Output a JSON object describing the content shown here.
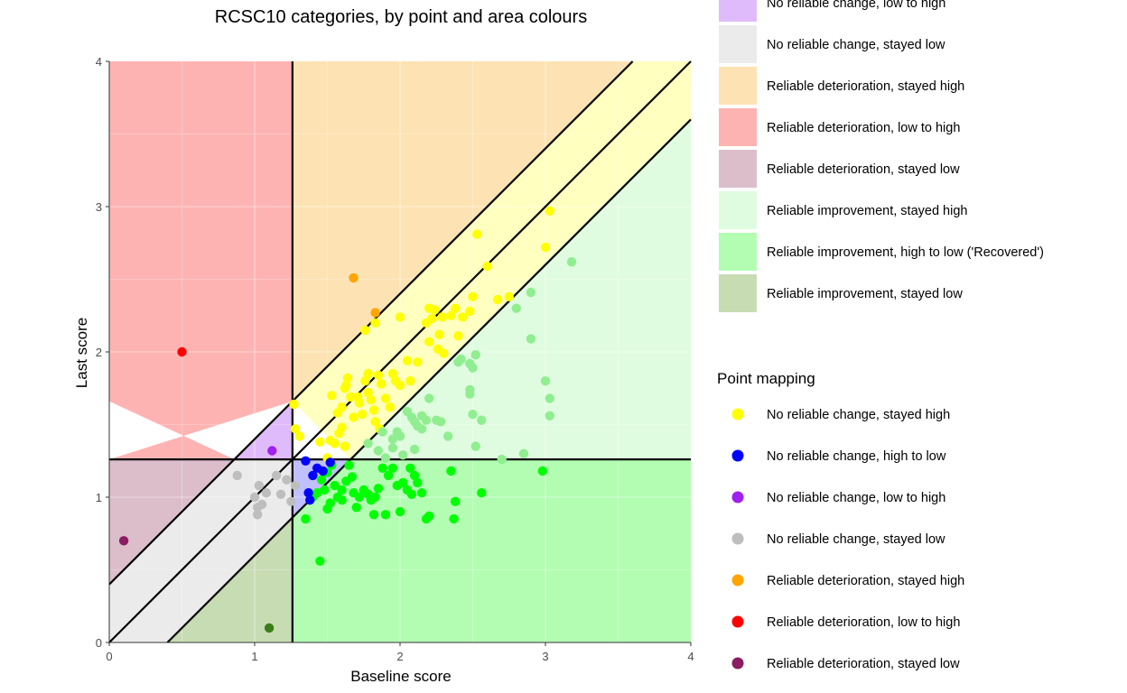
{
  "chart_data": {
    "type": "scatter",
    "title": "RCSC10 categories, by point and area colours",
    "xlabel": "Baseline score",
    "ylabel": "Last score",
    "xlim": [
      0,
      4
    ],
    "ylim": [
      0,
      4
    ],
    "xticks": [
      "0",
      "1",
      "2",
      "3",
      "4"
    ],
    "yticks": [
      "0",
      "1",
      "2",
      "3",
      "4"
    ],
    "cutoff": 1.26,
    "rci": 0.4,
    "area_legend": [
      {
        "label": "No reliable change, low to high",
        "color": "#e0bbfb"
      },
      {
        "label": "No reliable change, stayed low",
        "color": "#ebebeb"
      },
      {
        "label": "Reliable deterioration, stayed high",
        "color": "#fde3b3"
      },
      {
        "label": "Reliable deterioration, low to high",
        "color": "#feb3b3"
      },
      {
        "label": "Reliable deterioration, stayed low",
        "color": "#dcbecb"
      },
      {
        "label": "Reliable improvement, stayed high",
        "color": "#e0fce0"
      },
      {
        "label": "Reliable improvement, high to low ('Recovered')",
        "color": "#b3fdb3"
      },
      {
        "label": "Reliable improvement, stayed low",
        "color": "#c8dcb4"
      }
    ],
    "point_legend_title": "Point mapping",
    "point_legend": [
      {
        "label": "No reliable change, stayed high",
        "color": "#ffff00"
      },
      {
        "label": "No reliable change, high to low",
        "color": "#0000ff"
      },
      {
        "label": "No reliable change, low to high",
        "color": "#a020f0"
      },
      {
        "label": "No reliable change, stayed low",
        "color": "#bebebe"
      },
      {
        "label": "Reliable deterioration, stayed high",
        "color": "#ffa500"
      },
      {
        "label": "Reliable deterioration, low to high",
        "color": "#ff0000"
      },
      {
        "label": "Reliable deterioration, stayed low",
        "color": "#8b1c62"
      }
    ],
    "series": [
      {
        "name": "No reliable change, stayed high",
        "color": "#ffff00",
        "points": [
          [
            1.27,
            1.64
          ],
          [
            1.28,
            1.47
          ],
          [
            1.31,
            1.42
          ],
          [
            1.45,
            1.38
          ],
          [
            1.52,
            1.39
          ],
          [
            1.55,
            1.37
          ],
          [
            1.58,
            1.44
          ],
          [
            1.6,
            1.48
          ],
          [
            1.62,
            1.35
          ],
          [
            1.5,
            1.27
          ],
          [
            1.53,
            1.7
          ],
          [
            1.57,
            1.58
          ],
          [
            1.6,
            1.62
          ],
          [
            1.62,
            1.75
          ],
          [
            1.66,
            1.69
          ],
          [
            1.68,
            1.55
          ],
          [
            1.72,
            1.65
          ],
          [
            1.74,
            1.57
          ],
          [
            1.76,
            1.8
          ],
          [
            1.78,
            1.72
          ],
          [
            1.8,
            1.67
          ],
          [
            1.82,
            1.6
          ],
          [
            1.85,
            1.84
          ],
          [
            1.87,
            1.78
          ],
          [
            1.9,
            1.68
          ],
          [
            1.83,
            1.52
          ],
          [
            1.86,
            1.47
          ],
          [
            1.93,
            1.62
          ],
          [
            1.95,
            1.85
          ],
          [
            1.97,
            1.8
          ],
          [
            2.0,
            1.77
          ],
          [
            2.05,
            1.94
          ],
          [
            2.07,
            1.8
          ],
          [
            2.12,
            1.93
          ],
          [
            1.63,
            1.77
          ],
          [
            1.64,
            1.82
          ],
          [
            1.76,
            2.15
          ],
          [
            1.83,
            2.2
          ],
          [
            2.0,
            2.24
          ],
          [
            2.18,
            2.2
          ],
          [
            2.22,
            2.23
          ],
          [
            2.24,
            2.29
          ],
          [
            2.29,
            2.24
          ],
          [
            2.35,
            2.25
          ],
          [
            2.38,
            2.3
          ],
          [
            2.43,
            2.24
          ],
          [
            2.48,
            2.28
          ],
          [
            2.5,
            2.38
          ],
          [
            2.2,
            2.07
          ],
          [
            2.26,
            2.02
          ],
          [
            2.27,
            2.12
          ],
          [
            2.3,
            1.99
          ],
          [
            2.4,
            2.11
          ],
          [
            2.53,
            2.81
          ],
          [
            2.6,
            2.59
          ],
          [
            2.67,
            2.36
          ],
          [
            2.75,
            2.38
          ],
          [
            3.0,
            2.72
          ],
          [
            3.03,
            2.97
          ],
          [
            2.2,
            2.3
          ],
          [
            1.78,
            1.85
          ],
          [
            1.71,
            1.69
          ]
        ]
      },
      {
        "name": "Reliable improvement, stayed high",
        "color": "#90ee90",
        "points": [
          [
            1.78,
            1.37
          ],
          [
            1.85,
            1.32
          ],
          [
            1.9,
            1.27
          ],
          [
            1.95,
            1.4
          ],
          [
            2.0,
            1.42
          ],
          [
            2.05,
            1.59
          ],
          [
            2.08,
            1.55
          ],
          [
            2.1,
            1.52
          ],
          [
            2.12,
            1.49
          ],
          [
            2.15,
            1.47
          ],
          [
            2.18,
            1.53
          ],
          [
            2.2,
            1.68
          ],
          [
            2.25,
            1.53
          ],
          [
            2.28,
            1.52
          ],
          [
            2.33,
            1.42
          ],
          [
            2.4,
            1.93
          ],
          [
            2.42,
            1.95
          ],
          [
            2.48,
            1.92
          ],
          [
            2.5,
            1.89
          ],
          [
            2.52,
            1.98
          ],
          [
            2.56,
            1.53
          ],
          [
            2.5,
            1.57
          ],
          [
            2.48,
            1.71
          ],
          [
            2.48,
            1.74
          ],
          [
            2.52,
            1.35
          ],
          [
            2.7,
            1.26
          ],
          [
            2.85,
            1.3
          ],
          [
            2.9,
            2.09
          ],
          [
            2.9,
            2.41
          ],
          [
            2.8,
            2.3
          ],
          [
            3.0,
            1.8
          ],
          [
            3.03,
            1.68
          ],
          [
            3.03,
            1.56
          ],
          [
            3.18,
            2.62
          ],
          [
            1.95,
            1.34
          ],
          [
            2.02,
            1.29
          ],
          [
            2.1,
            1.33
          ],
          [
            2.15,
            1.56
          ],
          [
            1.88,
            1.45
          ],
          [
            1.98,
            1.45
          ]
        ]
      },
      {
        "name": "Reliable improvement, high to low ('Recovered')",
        "color": "#00ff00",
        "points": [
          [
            1.43,
            1.03
          ],
          [
            1.46,
            1.12
          ],
          [
            1.5,
            1.17
          ],
          [
            1.52,
            0.96
          ],
          [
            1.55,
            1.08
          ],
          [
            1.57,
            1.0
          ],
          [
            1.6,
            1.05
          ],
          [
            1.63,
            1.11
          ],
          [
            1.65,
            1.22
          ],
          [
            1.68,
            1.03
          ],
          [
            1.7,
            0.93
          ],
          [
            1.72,
            1.0
          ],
          [
            1.75,
            1.05
          ],
          [
            1.78,
            1.02
          ],
          [
            1.8,
            0.98
          ],
          [
            1.82,
            0.88
          ],
          [
            1.85,
            1.06
          ],
          [
            1.88,
            1.2
          ],
          [
            1.9,
            0.88
          ],
          [
            1.92,
            1.15
          ],
          [
            1.95,
            1.2
          ],
          [
            1.98,
            1.08
          ],
          [
            2.0,
            0.9
          ],
          [
            2.02,
            1.1
          ],
          [
            2.05,
            1.05
          ],
          [
            2.08,
            1.02
          ],
          [
            2.1,
            1.15
          ],
          [
            2.12,
            1.1
          ],
          [
            2.15,
            1.03
          ],
          [
            2.18,
            0.85
          ],
          [
            2.35,
            1.18
          ],
          [
            2.37,
            0.85
          ],
          [
            2.38,
            0.97
          ],
          [
            2.56,
            1.03
          ],
          [
            2.98,
            1.18
          ],
          [
            1.45,
            0.56
          ],
          [
            1.35,
            0.85
          ],
          [
            1.4,
            1.0
          ],
          [
            1.5,
            0.92
          ],
          [
            1.6,
            0.98
          ],
          [
            1.67,
            1.14
          ],
          [
            1.53,
            1.22
          ],
          [
            2.2,
            0.87
          ],
          [
            1.83,
            1.0
          ],
          [
            2.07,
            1.2
          ],
          [
            1.48,
            1.05
          ]
        ]
      },
      {
        "name": "No reliable change, high to low",
        "color": "#0000ff",
        "points": [
          [
            1.35,
            1.25
          ],
          [
            1.4,
            1.15
          ],
          [
            1.43,
            1.2
          ],
          [
            1.47,
            1.18
          ],
          [
            1.52,
            1.24
          ],
          [
            1.37,
            1.03
          ],
          [
            1.38,
            0.98
          ]
        ]
      },
      {
        "name": "No reliable change, stayed low",
        "color": "#bebebe",
        "points": [
          [
            0.88,
            1.15
          ],
          [
            1.0,
            1.0
          ],
          [
            1.02,
            0.88
          ],
          [
            1.05,
            0.95
          ],
          [
            1.03,
            1.08
          ],
          [
            1.08,
            1.03
          ],
          [
            1.15,
            1.15
          ],
          [
            1.18,
            1.02
          ],
          [
            1.22,
            1.12
          ],
          [
            1.25,
            0.97
          ],
          [
            1.28,
            1.08
          ],
          [
            1.02,
            0.93
          ]
        ]
      },
      {
        "name": "No reliable change, low to high",
        "color": "#a020f0",
        "points": [
          [
            1.12,
            1.32
          ]
        ]
      },
      {
        "name": "Reliable deterioration, stayed high",
        "color": "#ffa500",
        "points": [
          [
            1.68,
            2.51
          ],
          [
            1.83,
            2.27
          ]
        ]
      },
      {
        "name": "Reliable deterioration, low to high",
        "color": "#ff0000",
        "points": [
          [
            0.5,
            2.0
          ]
        ]
      },
      {
        "name": "Reliable deterioration, stayed low",
        "color": "#8b1c62",
        "points": [
          [
            0.1,
            0.7
          ]
        ]
      },
      {
        "name": "Reliable improvement, stayed low",
        "color": "#3a7d1a",
        "points": [
          [
            1.1,
            0.1
          ]
        ]
      }
    ]
  }
}
